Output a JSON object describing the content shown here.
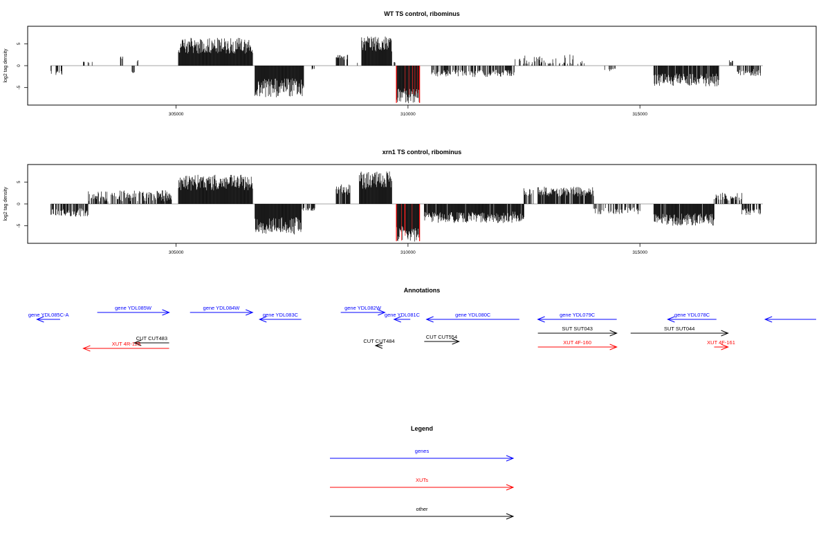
{
  "chart_data": [
    {
      "type": "bar",
      "title": "WT TS control, ribominus",
      "ylabel": "log2 tag density",
      "xlabel": "",
      "xlim": [
        301800,
        318800
      ],
      "ylim": [
        -9,
        9
      ],
      "xticks": [
        305000,
        310000,
        315000
      ],
      "yticks": [
        -5,
        0,
        5
      ],
      "grid": false,
      "highlight_color": "#ff0000",
      "segments": [
        {
          "x0": 302300,
          "x1": 302550,
          "sign": -1,
          "base": 1.5,
          "amp": 0.6,
          "density": 0.5
        },
        {
          "x0": 303000,
          "x1": 303200,
          "sign": 1,
          "base": 0.8,
          "amp": 0.3,
          "density": 0.3
        },
        {
          "x0": 303800,
          "x1": 303850,
          "sign": 1,
          "base": 1.8,
          "amp": 0.3,
          "density": 0.6
        },
        {
          "x0": 304050,
          "x1": 304100,
          "sign": -1,
          "base": 1.5,
          "amp": 0.3,
          "density": 0.6
        },
        {
          "x0": 304150,
          "x1": 304200,
          "sign": 1,
          "base": 1.0,
          "amp": 0.3,
          "density": 0.6
        },
        {
          "x0": 305050,
          "x1": 306650,
          "sign": 1,
          "base": 4.2,
          "amp": 1.8,
          "density": 1.0
        },
        {
          "x0": 306700,
          "x1": 307750,
          "sign": -1,
          "base": 4.6,
          "amp": 2.2,
          "density": 1.0
        },
        {
          "x0": 307850,
          "x1": 308000,
          "sign": -1,
          "base": 0.8,
          "amp": 0.3,
          "density": 0.3
        },
        {
          "x0": 308450,
          "x1": 308700,
          "sign": 1,
          "base": 1.8,
          "amp": 0.6,
          "density": 0.6
        },
        {
          "x0": 308900,
          "x1": 308950,
          "sign": 1,
          "base": 0.8,
          "amp": 0.3,
          "density": 0.6
        },
        {
          "x0": 309000,
          "x1": 309650,
          "sign": 1,
          "base": 4.6,
          "amp": 1.8,
          "density": 1.0
        },
        {
          "x0": 309700,
          "x1": 309750,
          "sign": 1,
          "base": 0.8,
          "amp": 0.2,
          "density": 0.8
        },
        {
          "x0": 309750,
          "x1": 310250,
          "sign": -1,
          "base": 6.5,
          "amp": 1.8,
          "density": 1.0,
          "highlight": true
        },
        {
          "x0": 310500,
          "x1": 312300,
          "sign": -1,
          "base": 1.6,
          "amp": 0.8,
          "density": 0.6
        },
        {
          "x0": 312300,
          "x1": 313800,
          "sign": 1,
          "base": 0.9,
          "amp": 1.4,
          "density": 0.35
        },
        {
          "x0": 314200,
          "x1": 314500,
          "sign": -1,
          "base": 0.9,
          "amp": 0.3,
          "density": 0.3
        },
        {
          "x0": 315300,
          "x1": 316700,
          "sign": -1,
          "base": 3.0,
          "amp": 1.5,
          "density": 0.9
        },
        {
          "x0": 316900,
          "x1": 317000,
          "sign": 1,
          "base": 0.9,
          "amp": 0.3,
          "density": 0.5
        },
        {
          "x0": 317100,
          "x1": 317600,
          "sign": -1,
          "base": 1.4,
          "amp": 0.8,
          "density": 0.6
        }
      ]
    },
    {
      "type": "bar",
      "title": "xrn1 TS control, ribominus",
      "ylabel": "log2 tag density",
      "xlabel": "",
      "xlim": [
        301800,
        318800
      ],
      "ylim": [
        -9,
        9
      ],
      "xticks": [
        305000,
        310000,
        315000
      ],
      "yticks": [
        -5,
        0,
        5
      ],
      "grid": false,
      "highlight_color": "#ff0000",
      "segments": [
        {
          "x0": 302300,
          "x1": 303100,
          "sign": -1,
          "base": 1.8,
          "amp": 1.0,
          "density": 0.7
        },
        {
          "x0": 303100,
          "x1": 304900,
          "sign": 1,
          "base": 1.6,
          "amp": 1.3,
          "density": 0.7
        },
        {
          "x0": 305050,
          "x1": 306650,
          "sign": 1,
          "base": 4.5,
          "amp": 1.8,
          "density": 1.0
        },
        {
          "x0": 306700,
          "x1": 307700,
          "sign": -1,
          "base": 4.6,
          "amp": 2.0,
          "density": 1.0
        },
        {
          "x0": 307700,
          "x1": 308000,
          "sign": -1,
          "base": 1.2,
          "amp": 0.5,
          "density": 0.5
        },
        {
          "x0": 308450,
          "x1": 308750,
          "sign": 1,
          "base": 3.0,
          "amp": 1.2,
          "density": 0.7
        },
        {
          "x0": 308950,
          "x1": 309650,
          "sign": 1,
          "base": 5.0,
          "amp": 2.0,
          "density": 1.0
        },
        {
          "x0": 309750,
          "x1": 310250,
          "sign": -1,
          "base": 6.5,
          "amp": 1.8,
          "density": 1.0,
          "highlight": true
        },
        {
          "x0": 310350,
          "x1": 312500,
          "sign": -1,
          "base": 2.8,
          "amp": 1.3,
          "density": 0.95
        },
        {
          "x0": 312500,
          "x1": 312700,
          "sign": 1,
          "base": 2.5,
          "amp": 1.0,
          "density": 0.5
        },
        {
          "x0": 312800,
          "x1": 314000,
          "sign": 1,
          "base": 2.6,
          "amp": 1.1,
          "density": 0.9
        },
        {
          "x0": 314000,
          "x1": 315000,
          "sign": -1,
          "base": 1.4,
          "amp": 0.8,
          "density": 0.4
        },
        {
          "x0": 315300,
          "x1": 316600,
          "sign": -1,
          "base": 3.3,
          "amp": 1.4,
          "density": 0.95
        },
        {
          "x0": 316600,
          "x1": 317200,
          "sign": 1,
          "base": 1.5,
          "amp": 0.9,
          "density": 0.5
        },
        {
          "x0": 317200,
          "x1": 317600,
          "sign": -1,
          "base": 1.6,
          "amp": 0.8,
          "density": 0.8
        }
      ]
    }
  ],
  "annotations": {
    "title": "Annotations",
    "features": [
      {
        "label": "gene YDL085C-A",
        "x0": 302500,
        "x1": 302000,
        "row": 0,
        "kind": "gene"
      },
      {
        "label": "gene YDL085W",
        "x0": 303300,
        "x1": 304850,
        "row": -1,
        "kind": "gene"
      },
      {
        "label": "gene YDL084W",
        "x0": 305300,
        "x1": 306650,
        "row": -1,
        "kind": "gene"
      },
      {
        "label": "gene YDL083C",
        "x0": 307700,
        "x1": 306800,
        "row": 0,
        "kind": "gene"
      },
      {
        "label": "gene YDL082W",
        "x0": 308550,
        "x1": 309500,
        "row": -1,
        "kind": "gene"
      },
      {
        "label": "gene YDL081C",
        "x0": 310050,
        "x1": 309700,
        "row": 0,
        "kind": "gene"
      },
      {
        "label": "gene YDL080C",
        "x0": 312400,
        "x1": 310400,
        "row": 0,
        "kind": "gene"
      },
      {
        "label": "gene YDL079C",
        "x0": 314500,
        "x1": 312800,
        "row": 0,
        "kind": "gene"
      },
      {
        "label": "gene YDL078C",
        "x0": 316650,
        "x1": 315600,
        "row": 0,
        "kind": "gene"
      },
      {
        "label": "",
        "x0": 318800,
        "x1": 317700,
        "row": 0,
        "kind": "gene"
      },
      {
        "label": "SUT SUT043",
        "x0": 312800,
        "x1": 314500,
        "row": 2,
        "kind": "other"
      },
      {
        "label": "SUT SUT044",
        "x0": 314800,
        "x1": 316900,
        "row": 2,
        "kind": "other"
      },
      {
        "label": "CUT CUT483",
        "x0": 304850,
        "x1": 304100,
        "row": 3.4,
        "kind": "other"
      },
      {
        "label": "CUT CUT484",
        "x0": 309450,
        "x1": 309300,
        "row": 3.8,
        "kind": "other"
      },
      {
        "label": "CUT CUT554",
        "x0": 310350,
        "x1": 311100,
        "row": 3.2,
        "kind": "other"
      },
      {
        "label": "XUT 4R-125",
        "x0": 304850,
        "x1": 303000,
        "row": 4.2,
        "kind": "xut"
      },
      {
        "label": "XUT 4F-160",
        "x0": 312800,
        "x1": 314500,
        "row": 4.0,
        "kind": "xut"
      },
      {
        "label": "XUT 4F-161",
        "x0": 316600,
        "x1": 316900,
        "row": 4.0,
        "kind": "xut"
      }
    ]
  },
  "legend": {
    "title": "Legend",
    "items": [
      {
        "label": "genes",
        "color": "#0000ff"
      },
      {
        "label": "XUTs",
        "color": "#ff0000"
      },
      {
        "label": "other",
        "color": "#000000"
      }
    ]
  },
  "colors": {
    "gene": "#0000ff",
    "xut": "#ff0000",
    "other": "#000000",
    "axis": "#000000",
    "baseline": "#888888"
  }
}
